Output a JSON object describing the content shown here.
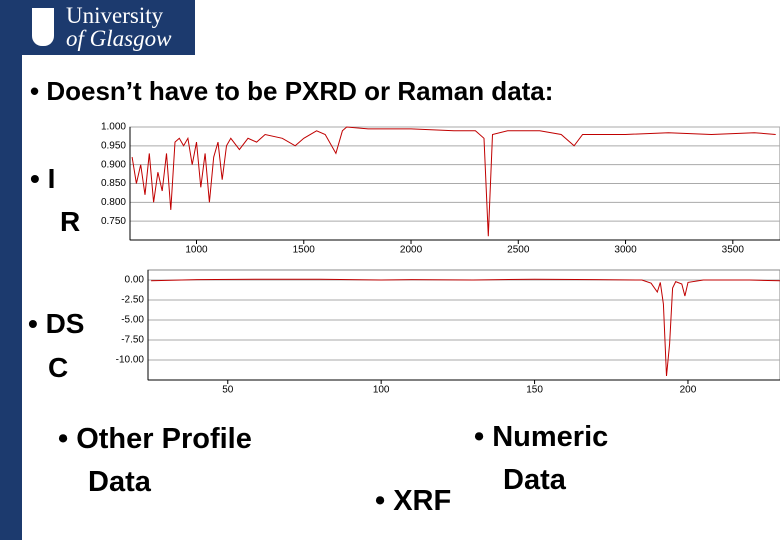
{
  "logo": {
    "line1": "University",
    "line2": "of Glasgow"
  },
  "title": "• Doesn’t have to be PXRD or Raman data:",
  "labels": {
    "ir1": "• I",
    "ir2": "R",
    "dsc1": "• DS",
    "dsc2": "C",
    "other1": "• Other Profile",
    "other2": "Data",
    "numeric1": "• Numeric",
    "numeric2": "Data",
    "xrf": "• XRF"
  },
  "chart_data": [
    {
      "type": "line",
      "grid": true,
      "x": [
        700,
        720,
        740,
        760,
        780,
        800,
        820,
        840,
        860,
        880,
        900,
        920,
        940,
        960,
        980,
        1000,
        1020,
        1040,
        1060,
        1080,
        1100,
        1120,
        1140,
        1160,
        1200,
        1240,
        1280,
        1320,
        1400,
        1460,
        1500,
        1560,
        1600,
        1650,
        1680,
        1700,
        1800,
        2000,
        2200,
        2300,
        2340,
        2360,
        2380,
        2450,
        2600,
        2700,
        2760,
        2800,
        3000,
        3200,
        3400,
        3600,
        3700
      ],
      "series": [
        {
          "color": "#c00000",
          "values": [
            0.92,
            0.85,
            0.9,
            0.82,
            0.93,
            0.8,
            0.88,
            0.83,
            0.93,
            0.78,
            0.96,
            0.97,
            0.95,
            0.97,
            0.9,
            0.96,
            0.84,
            0.93,
            0.8,
            0.92,
            0.96,
            0.86,
            0.95,
            0.97,
            0.94,
            0.97,
            0.96,
            0.98,
            0.97,
            0.95,
            0.97,
            0.99,
            0.98,
            0.93,
            0.99,
            1.0,
            0.995,
            0.995,
            0.99,
            0.99,
            0.97,
            0.71,
            0.98,
            0.99,
            0.99,
            0.98,
            0.95,
            0.98,
            0.98,
            0.985,
            0.98,
            0.985,
            0.98
          ]
        }
      ],
      "xlim": [
        690,
        3720
      ],
      "xticks": [
        1000,
        1500,
        2000,
        2500,
        3000,
        3500
      ],
      "ylim": [
        0.7,
        1.0
      ],
      "yticks": [
        {
          "value": 1.0,
          "label": "1.000"
        },
        {
          "value": 0.95,
          "label": "0.950"
        },
        {
          "value": 0.9,
          "label": "0.900"
        },
        {
          "value": 0.85,
          "label": "0.850"
        },
        {
          "value": 0.8,
          "label": "0.800"
        },
        {
          "value": 0.75,
          "label": "0.750"
        }
      ]
    },
    {
      "type": "line",
      "grid": true,
      "x": [
        25,
        40,
        60,
        80,
        100,
        110,
        130,
        150,
        170,
        185,
        188,
        190,
        191,
        192,
        193,
        194,
        195,
        196,
        198,
        199,
        200,
        205,
        220,
        230
      ],
      "series": [
        {
          "color": "#c00000",
          "values": [
            -0.1,
            0.05,
            0.1,
            0.1,
            0.0,
            0.05,
            0.0,
            0.1,
            0.05,
            0.0,
            -0.4,
            -1.5,
            -0.3,
            -3,
            -12,
            -8,
            -1,
            -0.2,
            -0.5,
            -2,
            -0.3,
            0.0,
            0.0,
            -0.1
          ]
        }
      ],
      "xlim": [
        24,
        230
      ],
      "xticks": [
        50,
        100,
        150,
        200
      ],
      "ylim": [
        -12.5,
        1.25
      ],
      "yticks": [
        {
          "value": 0,
          "label": "0.00"
        },
        {
          "value": -2.5,
          "label": "-2.50"
        },
        {
          "value": -5,
          "label": "-5.00"
        },
        {
          "value": -7.5,
          "label": "-7.50"
        },
        {
          "value": -10,
          "label": "-10.00"
        }
      ]
    }
  ]
}
